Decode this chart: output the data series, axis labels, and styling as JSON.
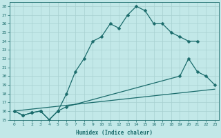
{
  "xlabel": "Humidex (Indice chaleur)",
  "bg_color": "#c2e8e8",
  "grid_color": "#a8d0d0",
  "line_color": "#1a6b6b",
  "xlim": [
    -0.5,
    23.5
  ],
  "ylim": [
    15,
    28.5
  ],
  "yticks": [
    15,
    16,
    17,
    18,
    19,
    20,
    21,
    22,
    23,
    24,
    25,
    26,
    27,
    28
  ],
  "xticks": [
    0,
    1,
    2,
    3,
    4,
    5,
    6,
    7,
    8,
    9,
    10,
    11,
    12,
    13,
    14,
    15,
    16,
    17,
    18,
    19,
    20,
    21,
    22,
    23
  ],
  "line1_x": [
    0,
    1,
    2,
    3,
    4,
    5,
    6,
    7,
    8,
    9,
    10,
    11,
    12,
    13,
    14,
    15,
    16,
    17,
    18,
    19,
    20,
    21
  ],
  "line1_y": [
    16,
    15.5,
    15.8,
    16.0,
    15.0,
    16.0,
    18.0,
    20.5,
    22.0,
    24.0,
    24.5,
    26.0,
    25.5,
    27.0,
    28.0,
    27.5,
    26.0,
    26.0,
    25.0,
    24.5,
    24.0,
    24.0
  ],
  "line2_x": [
    0,
    1,
    2,
    3,
    4,
    5,
    6,
    19,
    20,
    21,
    22,
    23
  ],
  "line2_y": [
    16,
    15.5,
    15.8,
    16.0,
    15.0,
    16.0,
    16.5,
    20.0,
    22.0,
    20.5,
    20.0,
    19.0
  ],
  "line3_x": [
    0,
    23
  ],
  "line3_y": [
    16,
    18.5
  ],
  "marker_size": 2.5,
  "linewidth": 0.9
}
